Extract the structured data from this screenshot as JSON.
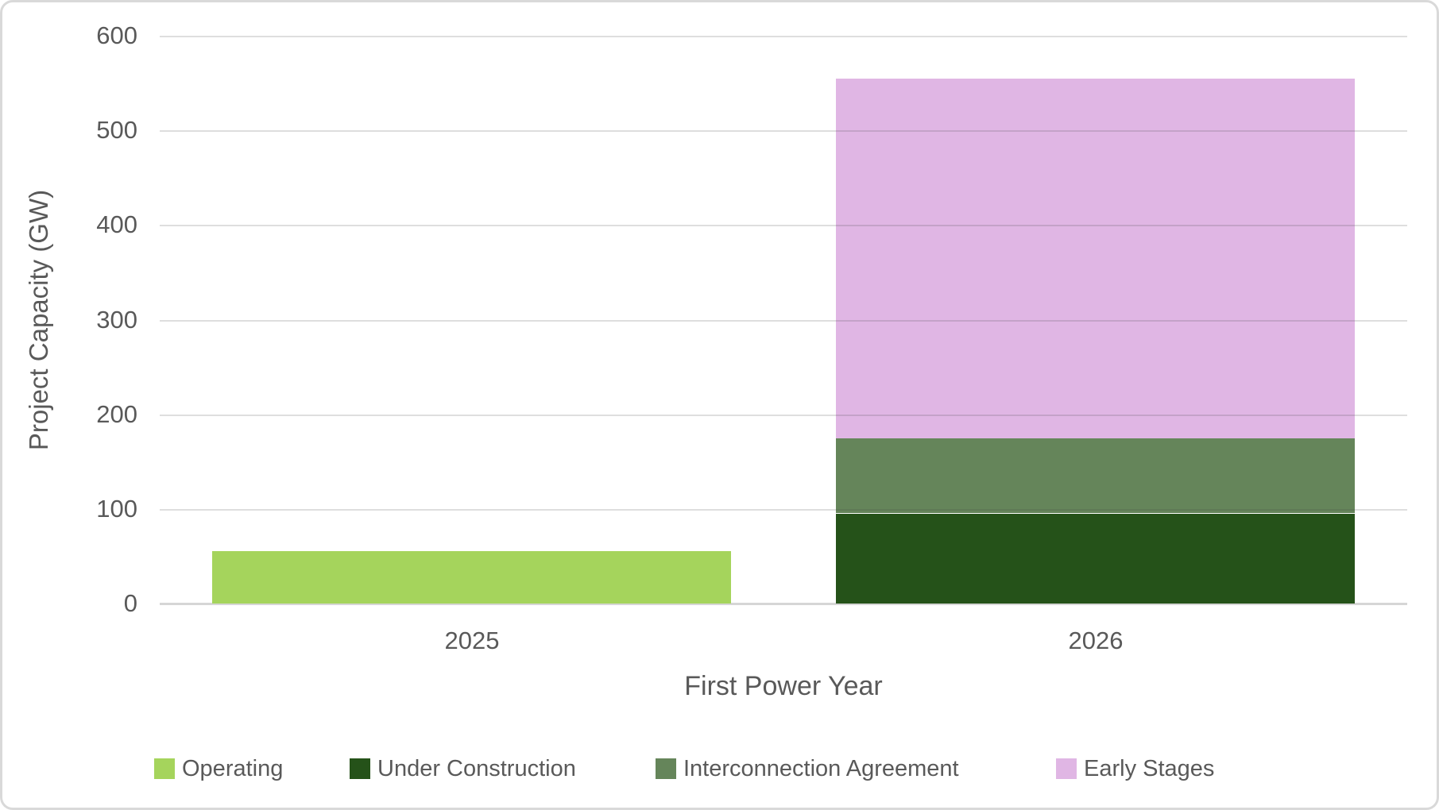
{
  "chart_data": {
    "type": "bar",
    "stacked": true,
    "title": "",
    "categories": [
      "2025",
      "2026"
    ],
    "series": [
      {
        "name": "Operating",
        "color": "#A5D45C",
        "values": [
          55,
          0
        ]
      },
      {
        "name": "Under Construction",
        "color": "#255219",
        "values": [
          0,
          95
        ]
      },
      {
        "name": "Interconnection Agreement",
        "color": "#65855A",
        "values": [
          0,
          80
        ]
      },
      {
        "name": "Early Stages",
        "color": "#E0B6E4",
        "values": [
          0,
          380
        ]
      }
    ],
    "xlabel": "First Power Year",
    "ylabel": "Project Capacity (GW)",
    "ylim": [
      0,
      600
    ],
    "yticks": [
      0,
      100,
      200,
      300,
      400,
      500,
      600
    ],
    "grid": true,
    "legend_position": "bottom",
    "totals_by_category": {
      "2025": 55,
      "2026": 555
    }
  },
  "colors": {
    "text": "#595959",
    "gridline": "#DDDDDD",
    "axis_line": "#D6D6D6",
    "border": "#D9D9D9",
    "background": "#FFFFFF"
  }
}
